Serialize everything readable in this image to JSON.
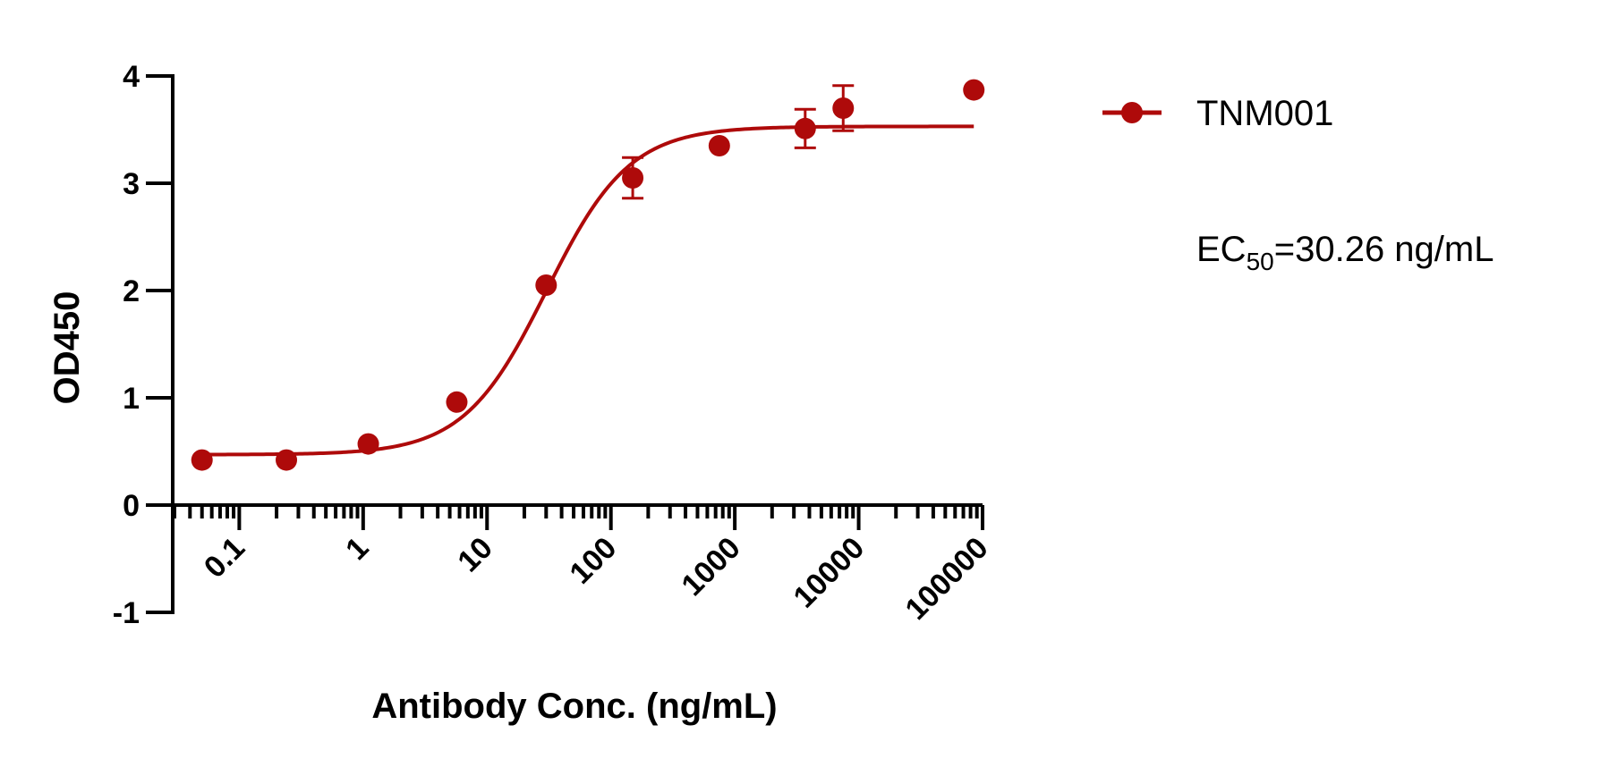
{
  "chart_data": {
    "type": "scatter",
    "title": "",
    "xlabel": "Antibody Conc. (ng/mL)",
    "ylabel": "OD450",
    "x_scale": "log10",
    "xlim": [
      0.03,
      100000
    ],
    "ylim": [
      -1,
      4
    ],
    "x_tick_labels": [
      "0.1",
      "1",
      "10",
      "100",
      "1000",
      "10000",
      "100000"
    ],
    "x_tick_values": [
      0.1,
      1,
      10,
      100,
      1000,
      10000,
      100000
    ],
    "y_tick_labels": [
      "-1",
      "0",
      "1",
      "2",
      "3",
      "4"
    ],
    "y_tick_values": [
      -1,
      0,
      1,
      2,
      3,
      4
    ],
    "grid": false,
    "legend_position": "top-right",
    "series": [
      {
        "name": "TNM001",
        "color": "#AE0A0A",
        "points": [
          {
            "x": 0.05,
            "y": 0.42,
            "err": 0
          },
          {
            "x": 0.24,
            "y": 0.42,
            "err": 0
          },
          {
            "x": 1.1,
            "y": 0.57,
            "err": 0
          },
          {
            "x": 5.7,
            "y": 0.96,
            "err": 0
          },
          {
            "x": 30,
            "y": 2.05,
            "err": 0
          },
          {
            "x": 150,
            "y": 3.05,
            "err": 0.19
          },
          {
            "x": 750,
            "y": 3.35,
            "err": 0
          },
          {
            "x": 3700,
            "y": 3.51,
            "err": 0.18
          },
          {
            "x": 7500,
            "y": 3.7,
            "err": 0.21
          },
          {
            "x": 85000,
            "y": 3.87,
            "err": 0
          }
        ],
        "fit": {
          "model": "4PL",
          "bottom": 0.47,
          "top": 3.53,
          "ec50": 30.26,
          "hill": 1.3,
          "x_range": [
            0.05,
            85000
          ]
        }
      }
    ],
    "annotation": {
      "prefix": "EC",
      "subscript": "50",
      "suffix": "=30.26 ng/mL"
    }
  }
}
